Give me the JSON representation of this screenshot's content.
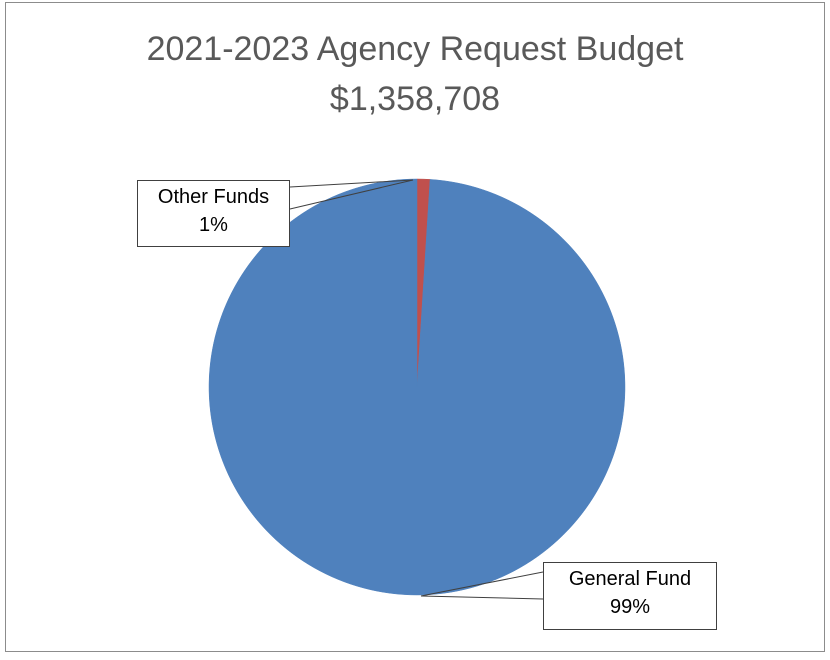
{
  "chart_data": {
    "type": "pie",
    "title": "2021-2023 Agency Request Budget",
    "subtitle": "$1,358,708",
    "slices": [
      {
        "label": "Other Funds",
        "percent_label": "1%",
        "value": 1,
        "color": "#C0504D"
      },
      {
        "label": "General Fund",
        "percent_label": "99%",
        "value": 99,
        "color": "#4F81BD"
      }
    ]
  }
}
